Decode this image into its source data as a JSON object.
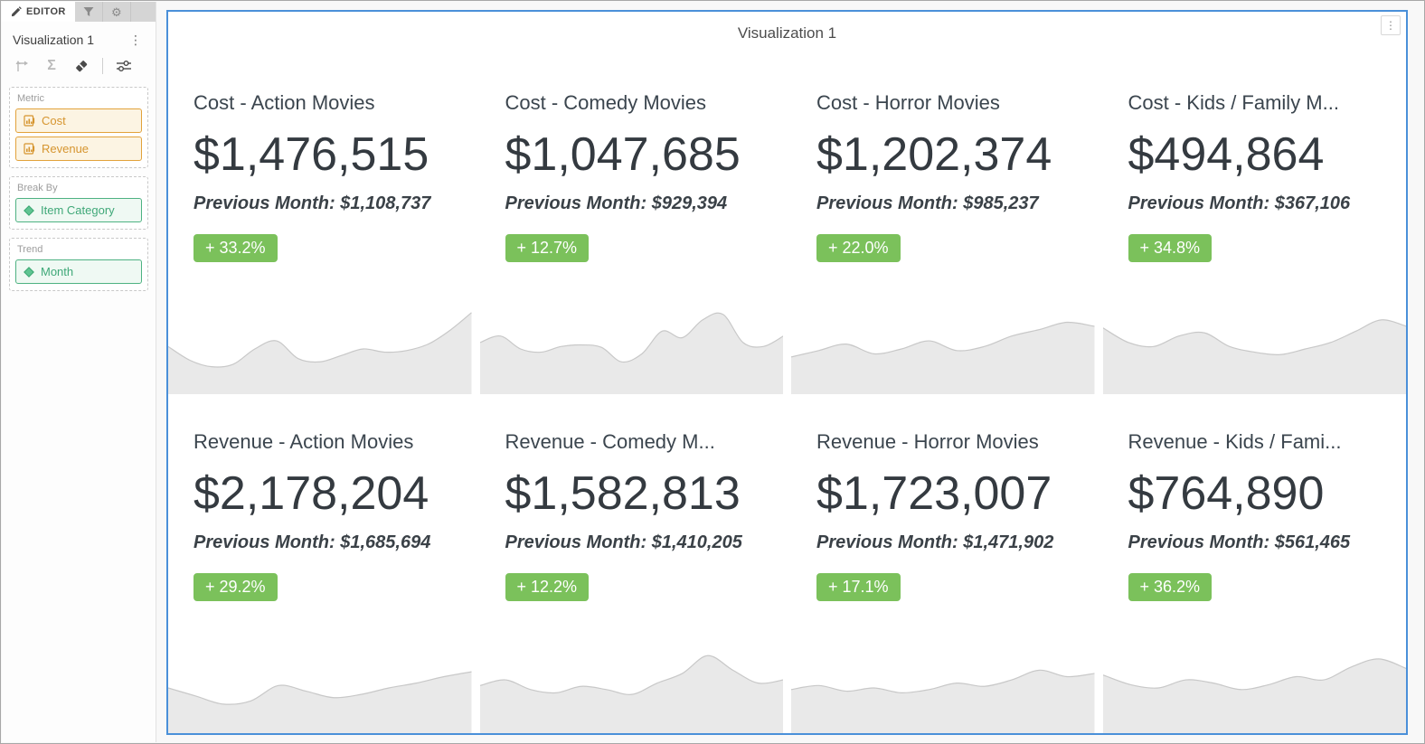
{
  "colors": {
    "accent_blue": "#4a90d9",
    "badge_green": "#7bc15b",
    "chip_orange": "#d6952f",
    "chip_green": "#3fa878",
    "spark_fill": "#e9e9e9",
    "spark_stroke": "#c8c8c8"
  },
  "sidebar": {
    "tabs": [
      {
        "label": "EDITOR",
        "icon": "pencil-icon",
        "active": true
      },
      {
        "label": "",
        "icon": "filter-icon",
        "active": false
      },
      {
        "label": "",
        "icon": "gear-icon",
        "active": false
      }
    ],
    "panel_title": "Visualization 1",
    "kebab": "⋮",
    "toolbar": [
      {
        "name": "swap-axes",
        "enabled": false
      },
      {
        "name": "totals-sigma",
        "enabled": false
      },
      {
        "name": "eraser",
        "enabled": true
      },
      {
        "name": "format-sliders",
        "enabled": true
      }
    ],
    "sections": [
      {
        "label": "Metric",
        "chips": [
          {
            "label": "Cost",
            "type": "metric"
          },
          {
            "label": "Revenue",
            "type": "metric"
          }
        ]
      },
      {
        "label": "Break By",
        "chips": [
          {
            "label": "Item Category",
            "type": "attribute"
          }
        ]
      },
      {
        "label": "Trend",
        "chips": [
          {
            "label": "Month",
            "type": "attribute"
          }
        ]
      }
    ]
  },
  "main": {
    "title": "Visualization 1",
    "kebab": "⋮",
    "cards": [
      {
        "title": "Cost - Action Movies",
        "value": "$1,476,515",
        "previous": "Previous Month: $1,108,737",
        "change": "+ 33.2%",
        "sparkline": [
          0.55,
          0.38,
          0.3,
          0.33,
          0.52,
          0.62,
          0.4,
          0.36,
          0.44,
          0.52,
          0.48,
          0.5,
          0.58,
          0.75,
          0.97
        ]
      },
      {
        "title": "Cost - Comedy Movies",
        "value": "$1,047,685",
        "previous": "Previous Month: $929,394",
        "change": "+ 12.7%",
        "sparkline": [
          0.6,
          0.68,
          0.52,
          0.48,
          0.55,
          0.57,
          0.54,
          0.36,
          0.46,
          0.74,
          0.66,
          0.88,
          0.95,
          0.6,
          0.55,
          0.68
        ]
      },
      {
        "title": "Cost - Horror Movies",
        "value": "$1,202,374",
        "previous": "Previous Month: $985,237",
        "change": "+ 22.0%",
        "sparkline": [
          0.42,
          0.5,
          0.58,
          0.46,
          0.52,
          0.62,
          0.5,
          0.55,
          0.68,
          0.76,
          0.85,
          0.8
        ]
      },
      {
        "title": "Cost - Kids / Family M...",
        "value": "$494,864",
        "previous": "Previous Month: $367,106",
        "change": "+ 34.8%",
        "sparkline": [
          0.78,
          0.6,
          0.55,
          0.68,
          0.72,
          0.55,
          0.48,
          0.45,
          0.52,
          0.6,
          0.74,
          0.88,
          0.8
        ]
      },
      {
        "title": "Revenue - Action Movies",
        "value": "$2,178,204",
        "previous": "Previous Month: $1,685,694",
        "change": "+ 29.2%",
        "sparkline": [
          0.52,
          0.42,
          0.32,
          0.36,
          0.55,
          0.48,
          0.4,
          0.44,
          0.52,
          0.58,
          0.66,
          0.72
        ]
      },
      {
        "title": "Revenue - Comedy M...",
        "value": "$1,582,813",
        "previous": "Previous Month: $1,410,205",
        "change": "+ 12.2%",
        "sparkline": [
          0.55,
          0.62,
          0.5,
          0.46,
          0.54,
          0.5,
          0.44,
          0.58,
          0.7,
          0.92,
          0.74,
          0.58,
          0.62
        ]
      },
      {
        "title": "Revenue - Horror Movies",
        "value": "$1,723,007",
        "previous": "Previous Month: $1,471,902",
        "change": "+ 17.1%",
        "sparkline": [
          0.5,
          0.55,
          0.48,
          0.52,
          0.46,
          0.5,
          0.58,
          0.54,
          0.62,
          0.74,
          0.66,
          0.7
        ]
      },
      {
        "title": "Revenue - Kids / Fami...",
        "value": "$764,890",
        "previous": "Previous Month: $561,465",
        "change": "+ 36.2%",
        "sparkline": [
          0.68,
          0.56,
          0.52,
          0.62,
          0.58,
          0.5,
          0.56,
          0.66,
          0.62,
          0.78,
          0.88,
          0.76
        ]
      }
    ]
  }
}
